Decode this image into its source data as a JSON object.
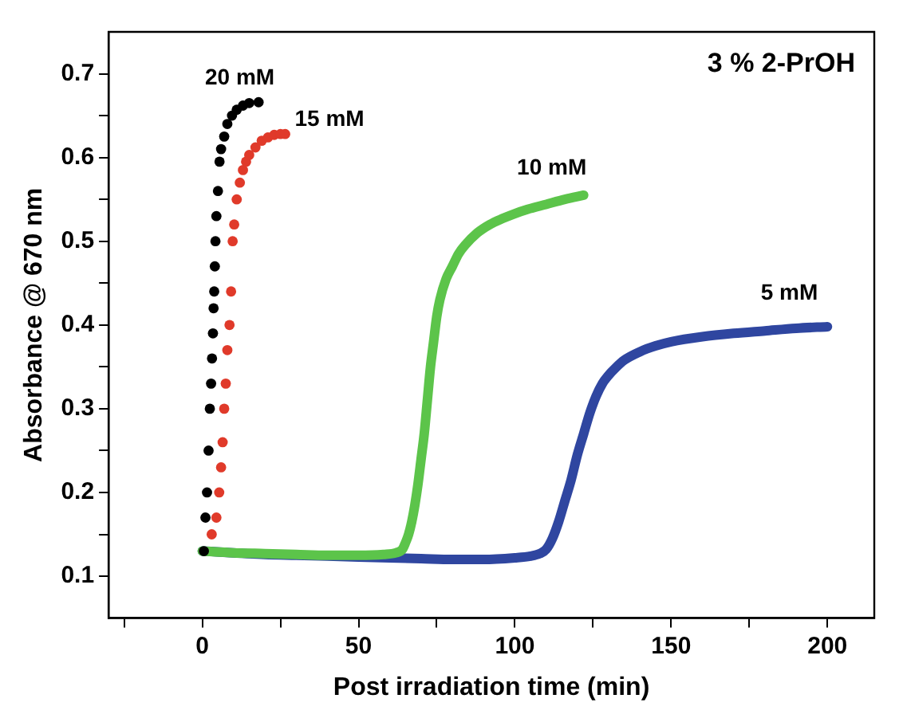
{
  "chart_data": {
    "type": "scatter",
    "title": "3 % 2-PrOH",
    "xlabel": "Post irradiation time (min)",
    "ylabel": "Absorbance @ 670 nm",
    "xlim": [
      -30,
      215
    ],
    "xticks": [
      {
        "value": -25,
        "label": null
      },
      0,
      {
        "value": 25,
        "label": null
      },
      50,
      {
        "value": 75,
        "label": null
      },
      100,
      {
        "value": 125,
        "label": null
      },
      150,
      {
        "value": 175,
        "label": null
      },
      200
    ],
    "ylim": [
      0.05,
      0.75
    ],
    "yticks": [
      0.1,
      {
        "value": 0.15,
        "label": null
      },
      0.2,
      {
        "value": 0.25,
        "label": null
      },
      0.3,
      {
        "value": 0.35,
        "label": null
      },
      0.4,
      {
        "value": 0.45,
        "label": null
      },
      0.5,
      {
        "value": 0.55,
        "label": null
      },
      0.6,
      {
        "value": 0.65,
        "label": null
      },
      0.7
    ],
    "grid": false,
    "legend": false,
    "marker": "circle",
    "series": [
      {
        "name": "20 mM",
        "color": "#000000",
        "x": [
          0.5,
          1,
          1.5,
          2,
          2.4,
          2.8,
          3.1,
          3.4,
          3.6,
          3.8,
          4,
          4.2,
          4.5,
          5,
          5.5,
          6,
          7,
          8,
          9.5,
          11,
          13,
          15,
          18
        ],
        "values": [
          0.13,
          0.17,
          0.2,
          0.25,
          0.3,
          0.33,
          0.36,
          0.39,
          0.42,
          0.44,
          0.47,
          0.5,
          0.53,
          0.56,
          0.595,
          0.61,
          0.625,
          0.64,
          0.65,
          0.657,
          0.662,
          0.665,
          0.666
        ]
      },
      {
        "name": "15 mM",
        "color": "#e03a2a",
        "x": [
          3,
          4.5,
          5.4,
          6,
          6.5,
          7,
          7.5,
          8,
          8.7,
          9.2,
          9.7,
          10.2,
          11,
          12,
          13,
          14,
          15,
          17,
          19,
          21,
          23,
          25,
          26.5
        ],
        "values": [
          0.15,
          0.17,
          0.2,
          0.23,
          0.26,
          0.3,
          0.33,
          0.37,
          0.4,
          0.44,
          0.5,
          0.52,
          0.55,
          0.57,
          0.585,
          0.595,
          0.603,
          0.612,
          0.62,
          0.624,
          0.627,
          0.628,
          0.628
        ]
      },
      {
        "name": "10 mM",
        "type": "line",
        "marker": "none",
        "color": "#5cc44a",
        "x": [
          0,
          10,
          20,
          30,
          40,
          50,
          58,
          62,
          64,
          65,
          66,
          67,
          68,
          69,
          70,
          71,
          72,
          73,
          74,
          75,
          76,
          78,
          80,
          82,
          84,
          88,
          92,
          96,
          100,
          104,
          110,
          116,
          122
        ],
        "values": [
          0.13,
          0.128,
          0.127,
          0.126,
          0.125,
          0.125,
          0.126,
          0.128,
          0.132,
          0.14,
          0.15,
          0.165,
          0.185,
          0.21,
          0.24,
          0.27,
          0.31,
          0.35,
          0.38,
          0.41,
          0.43,
          0.455,
          0.47,
          0.485,
          0.495,
          0.51,
          0.52,
          0.527,
          0.533,
          0.538,
          0.544,
          0.55,
          0.555
        ]
      },
      {
        "name": "5 mM",
        "type": "line",
        "marker": "none",
        "color": "#2f46a0",
        "x": [
          0,
          10,
          20,
          30,
          40,
          50,
          60,
          70,
          80,
          90,
          100,
          105,
          108,
          110,
          112,
          114,
          116,
          118,
          120,
          122,
          124,
          126,
          128,
          130,
          132,
          135,
          140,
          145,
          150,
          160,
          170,
          180,
          190,
          200
        ],
        "values": [
          0.13,
          null,
          0.126,
          0.125,
          0.124,
          0.123,
          0.122,
          0.121,
          0.12,
          0.12,
          0.122,
          0.124,
          0.127,
          0.132,
          0.145,
          0.165,
          0.19,
          0.215,
          0.245,
          0.27,
          0.295,
          0.315,
          0.33,
          0.34,
          0.348,
          0.358,
          0.368,
          0.375,
          0.38,
          0.386,
          0.39,
          0.393,
          0.396,
          0.398
        ]
      }
    ]
  }
}
